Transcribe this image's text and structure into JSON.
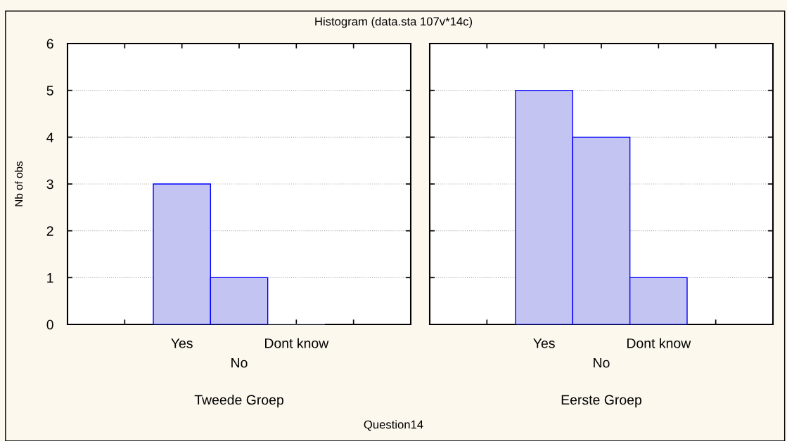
{
  "chart_data": [
    {
      "type": "bar",
      "title": "Histogram (data.sta 107v*14c)",
      "xlabel": "Tweede Groep",
      "ylabel": "Nb of obs",
      "annotations": [
        "Question14"
      ],
      "categories": [
        null,
        "Yes",
        "No",
        "Dont know",
        null
      ],
      "values": [
        null,
        3,
        1,
        0,
        null
      ],
      "color": "#c4c4f2",
      "ylim": [
        0,
        6
      ],
      "yticks": [
        0,
        1,
        2,
        3,
        4,
        5,
        6
      ],
      "grid": "y"
    },
    {
      "type": "bar",
      "xlabel": "Eerste Groep",
      "categories": [
        null,
        "Yes",
        "No",
        "Dont know",
        null
      ],
      "values": [
        null,
        5,
        4,
        1,
        null
      ],
      "color": "#c4c4f2",
      "ylim": [
        0,
        6
      ],
      "yticks": [
        0,
        1,
        2,
        3,
        4,
        5,
        6
      ],
      "grid": "y",
      "tick_labels": "x"
    }
  ]
}
